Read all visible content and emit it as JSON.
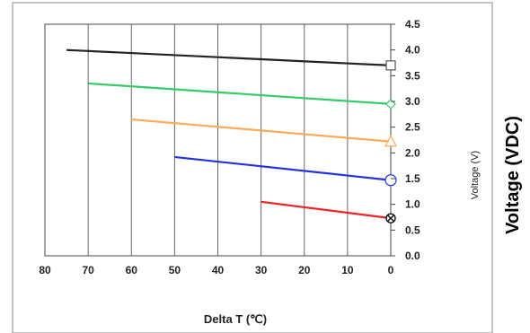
{
  "chart_data": {
    "type": "line",
    "xlabel": "Delta T (℃)",
    "ylabel": "Voltage (V)",
    "ylabel_outer": "Voltage (VDC)",
    "x_reversed": true,
    "xlim": [
      80,
      0
    ],
    "ylim": [
      0,
      4.5
    ],
    "x_ticks": [
      "80",
      "70",
      "60",
      "50",
      "40",
      "30",
      "20",
      "10",
      "0"
    ],
    "y_ticks": [
      "0.0",
      "0.5",
      "1.0",
      "1.5",
      "2.0",
      "2.5",
      "3.0",
      "3.5",
      "4.0",
      "4.5"
    ],
    "grid": true,
    "series": [
      {
        "color": "#222222",
        "marker": "square",
        "points": [
          [
            75,
            4.0
          ],
          [
            0,
            3.7
          ]
        ]
      },
      {
        "color": "#33cc66",
        "marker": "diamond",
        "points": [
          [
            70,
            3.35
          ],
          [
            0,
            2.95
          ]
        ]
      },
      {
        "color": "#ffaa55",
        "marker": "triangle",
        "points": [
          [
            60,
            2.65
          ],
          [
            0,
            2.22
          ]
        ]
      },
      {
        "color": "#2233dd",
        "marker": "circle",
        "points": [
          [
            50,
            1.92
          ],
          [
            0,
            1.47
          ]
        ]
      },
      {
        "color": "#ee2222",
        "marker": "x-circle",
        "points": [
          [
            30,
            1.05
          ],
          [
            0,
            0.73
          ]
        ]
      }
    ]
  }
}
